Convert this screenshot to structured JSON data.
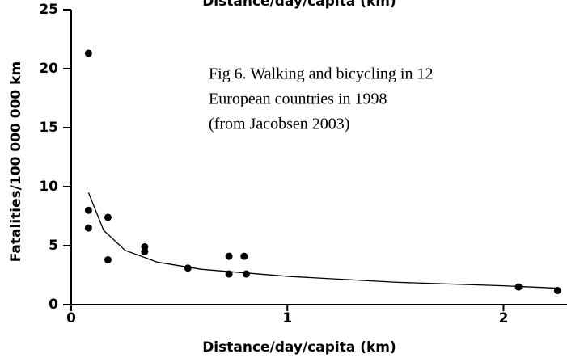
{
  "chart_data": {
    "type": "scatter",
    "top_label": "Distance/day/capita (km)",
    "xlabel": "Distance/day/capita (km)",
    "ylabel": "Fatalities/100 000 000 km",
    "annotation": [
      "Fig 6.  Walking and bicycling in 12",
      "European countries in 1998",
      "(from Jacobsen 2003)"
    ],
    "x": [
      0.08,
      0.08,
      0.08,
      0.17,
      0.17,
      0.34,
      0.34,
      0.54,
      0.73,
      0.73,
      0.81,
      0.8,
      2.07,
      2.25
    ],
    "values": [
      21.3,
      8.0,
      6.5,
      7.4,
      3.8,
      4.9,
      4.5,
      3.1,
      4.1,
      2.6,
      2.6,
      4.1,
      1.5,
      1.2
    ],
    "color": "#000000",
    "fit": {
      "x": [
        0.08,
        0.15,
        0.25,
        0.4,
        0.6,
        0.8,
        1,
        1.5,
        2,
        2.25
      ],
      "values": [
        9.5,
        6.3,
        4.6,
        3.6,
        3.0,
        2.7,
        2.4,
        1.9,
        1.6,
        1.4
      ]
    },
    "xlim": [
      0,
      2.29
    ],
    "ylim": [
      0,
      25
    ],
    "xticks": [
      0,
      1,
      2
    ],
    "yticks": [
      0,
      5,
      10,
      15,
      20,
      25
    ]
  }
}
